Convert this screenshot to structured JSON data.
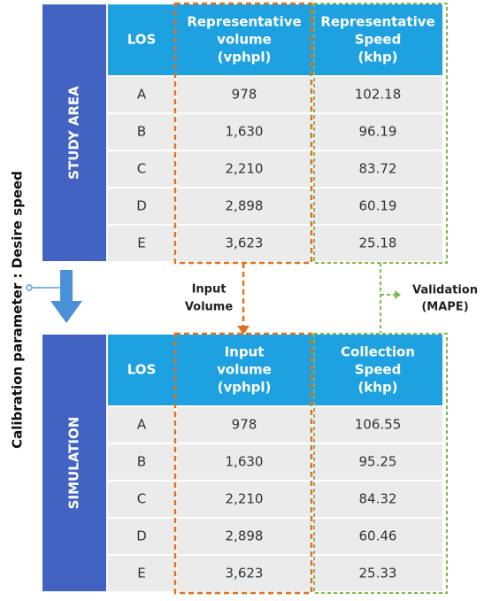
{
  "study_area": {
    "label": "STUDY AREA",
    "header": [
      "LOS",
      [
        "Representative",
        "volume",
        "(vphpl)"
      ],
      [
        "Representative",
        "Speed",
        "(khp)"
      ]
    ],
    "rows": [
      [
        "A",
        "978",
        "102.18"
      ],
      [
        "B",
        "1,630",
        "96.19"
      ],
      [
        "C",
        "2,210",
        "83.72"
      ],
      [
        "D",
        "2,898",
        "60.19"
      ],
      [
        "E",
        "3,623",
        "25.18"
      ]
    ]
  },
  "simulation": {
    "label": "SIMULATION",
    "header": [
      "LOS",
      [
        "Input",
        "volume",
        "(vphpl)"
      ],
      [
        "Collection",
        "Speed",
        "(khp)"
      ]
    ],
    "rows": [
      [
        "A",
        "978",
        "106.55"
      ],
      [
        "B",
        "1,630",
        "95.25"
      ],
      [
        "C",
        "2,210",
        "84.32"
      ],
      [
        "D",
        "2,898",
        "60.46"
      ],
      [
        "E",
        "3,623",
        "25.33"
      ]
    ]
  },
  "annotations": {
    "input_volume": [
      "Input",
      "Volume"
    ],
    "validation": [
      "Validation",
      "(MAPE)"
    ],
    "calibration": "Calibration parameter : Desire speed"
  }
}
